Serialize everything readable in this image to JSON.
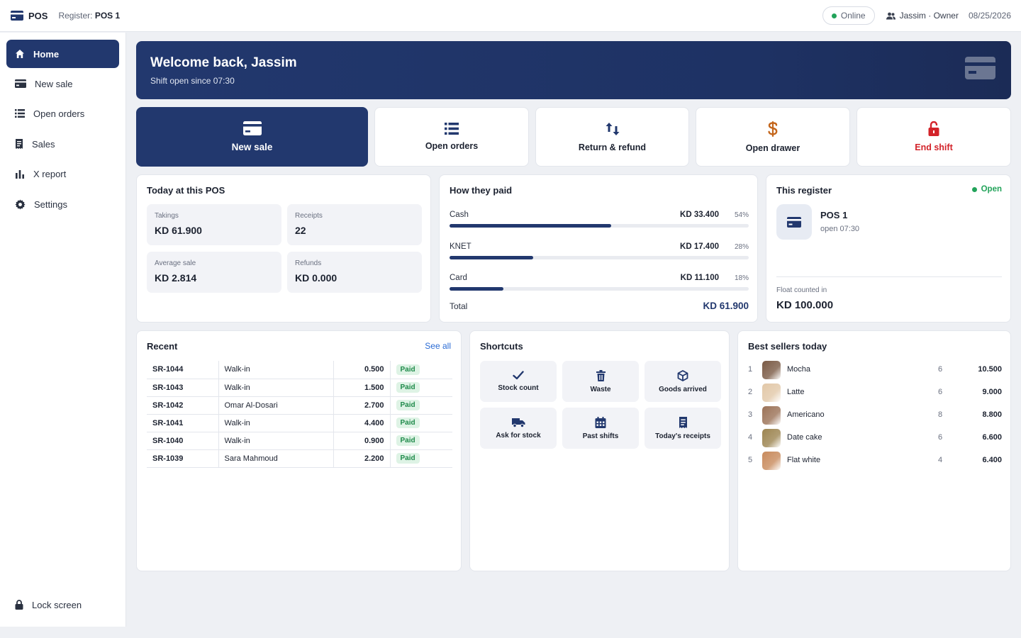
{
  "app": {
    "name": "POS",
    "register_label": "Register:",
    "register_value": "POS 1"
  },
  "topbar": {
    "status": "Online",
    "user": "Jassim · Owner",
    "date": "08/25/2026"
  },
  "sidebar": {
    "items": [
      {
        "label": "Home",
        "icon": "home-icon"
      },
      {
        "label": "New sale",
        "icon": "card-icon"
      },
      {
        "label": "Open orders",
        "icon": "list-icon"
      },
      {
        "label": "Sales",
        "icon": "receipt-icon"
      },
      {
        "label": "X report",
        "icon": "bar-chart-icon"
      },
      {
        "label": "Settings",
        "icon": "gear-icon"
      }
    ],
    "lock": "Lock screen"
  },
  "hero": {
    "title": "Welcome back, Jassim",
    "subtitle": "Shift open since 07:30"
  },
  "actions": [
    {
      "label": "New sale",
      "icon": "card-icon"
    },
    {
      "label": "Open orders",
      "icon": "list-icon"
    },
    {
      "label": "Return & refund",
      "icon": "arrows-updown-icon"
    },
    {
      "label": "Open drawer",
      "icon": "dollar-icon"
    },
    {
      "label": "End shift",
      "icon": "unlock-icon"
    }
  ],
  "today": {
    "title": "Today at this POS",
    "stats": [
      {
        "label": "Takings",
        "value": "KD 61.900"
      },
      {
        "label": "Receipts",
        "value": "22"
      },
      {
        "label": "Average sale",
        "value": "KD 2.814"
      },
      {
        "label": "Refunds",
        "value": "KD 0.000"
      }
    ]
  },
  "payments": {
    "title": "How they paid",
    "rows": [
      {
        "name": "Cash",
        "amount": "KD 33.400",
        "pct": "54%",
        "share": 0.54
      },
      {
        "name": "KNET",
        "amount": "KD 17.400",
        "pct": "28%",
        "share": 0.28
      },
      {
        "name": "Card",
        "amount": "KD 11.100",
        "pct": "18%",
        "share": 0.18
      }
    ],
    "total_label": "Total",
    "total_value": "KD 61.900"
  },
  "register": {
    "title": "This register",
    "status": "Open",
    "name": "POS 1",
    "opened": "open 07:30",
    "float_label": "Float counted in",
    "float_value": "KD 100.000"
  },
  "recent": {
    "title": "Recent",
    "see_all": "See all",
    "rows": [
      {
        "id": "SR-1044",
        "customer": "Walk-in",
        "amount": "0.500",
        "status": "Paid"
      },
      {
        "id": "SR-1043",
        "customer": "Walk-in",
        "amount": "1.500",
        "status": "Paid"
      },
      {
        "id": "SR-1042",
        "customer": "Omar Al-Dosari",
        "amount": "2.700",
        "status": "Paid"
      },
      {
        "id": "SR-1041",
        "customer": "Walk-in",
        "amount": "4.400",
        "status": "Paid"
      },
      {
        "id": "SR-1040",
        "customer": "Walk-in",
        "amount": "0.900",
        "status": "Paid"
      },
      {
        "id": "SR-1039",
        "customer": "Sara Mahmoud",
        "amount": "2.200",
        "status": "Paid"
      }
    ]
  },
  "shortcuts": {
    "title": "Shortcuts",
    "items": [
      {
        "label": "Stock count",
        "icon": "check-icon"
      },
      {
        "label": "Waste",
        "icon": "trash-icon"
      },
      {
        "label": "Goods arrived",
        "icon": "box-icon"
      },
      {
        "label": "Ask for stock",
        "icon": "truck-icon"
      },
      {
        "label": "Past shifts",
        "icon": "calendar-icon"
      },
      {
        "label": "Today's receipts",
        "icon": "receipt-icon"
      }
    ]
  },
  "bestsellers": {
    "title": "Best sellers today",
    "rows": [
      {
        "rank": "1",
        "name": "Mocha",
        "qty": "6",
        "revenue": "10.500",
        "color": "#7a5a45"
      },
      {
        "rank": "2",
        "name": "Latte",
        "qty": "6",
        "revenue": "9.000",
        "color": "#e2c8a8"
      },
      {
        "rank": "3",
        "name": "Americano",
        "qty": "8",
        "revenue": "8.800",
        "color": "#9b7257"
      },
      {
        "rank": "4",
        "name": "Date cake",
        "qty": "6",
        "revenue": "6.600",
        "color": "#9c8450"
      },
      {
        "rank": "5",
        "name": "Flat white",
        "qty": "4",
        "revenue": "6.400",
        "color": "#c88a5c"
      }
    ]
  },
  "colors": {
    "primary": "#22386e",
    "success": "#22a35a",
    "danger": "#d3232a",
    "warning": "#c4661c"
  }
}
